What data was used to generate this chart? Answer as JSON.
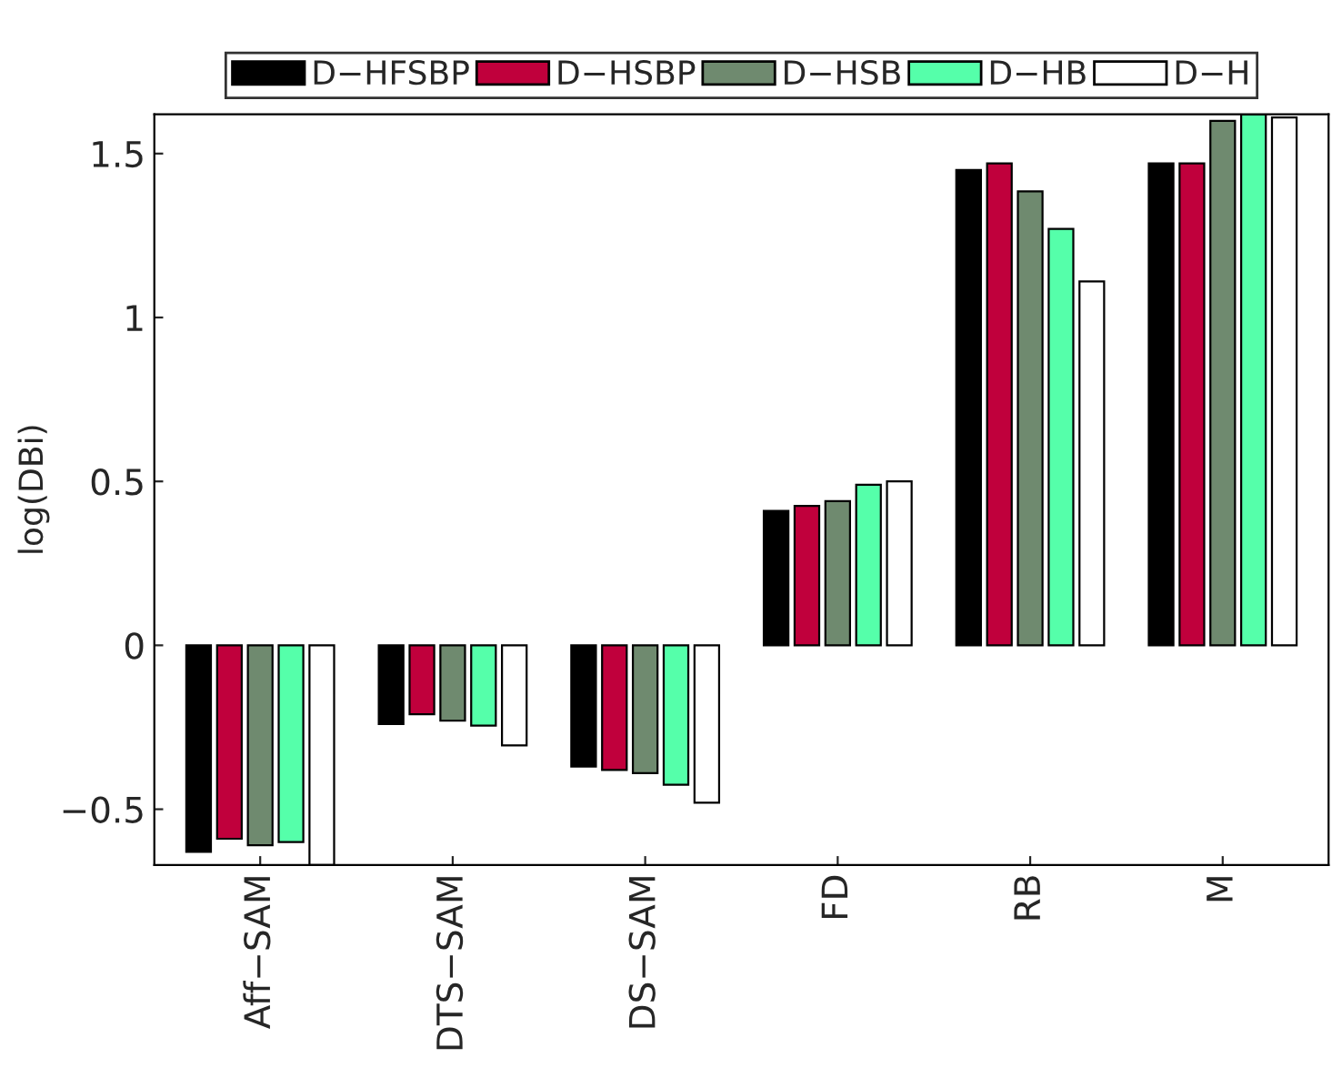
{
  "chart_data": {
    "type": "bar",
    "ylabel": "log(DBi)",
    "categories": [
      "Aff−SAM",
      "DTS−SAM",
      "DS−SAM",
      "FD",
      "RB",
      "M"
    ],
    "series": [
      {
        "name": "D−HFSBP",
        "color": "#000000",
        "values": [
          -0.63,
          -0.24,
          -0.37,
          0.41,
          1.45,
          1.47
        ]
      },
      {
        "name": "D−HSBP",
        "color": "#c0003c",
        "values": [
          -0.59,
          -0.21,
          -0.38,
          0.425,
          1.47,
          1.47
        ]
      },
      {
        "name": "D−HSB",
        "color": "#6f8a6f",
        "values": [
          -0.61,
          -0.23,
          -0.39,
          0.44,
          1.385,
          1.6
        ]
      },
      {
        "name": "D−HB",
        "color": "#55ffaa",
        "values": [
          -0.6,
          -0.245,
          -0.425,
          0.49,
          1.27,
          1.62
        ]
      },
      {
        "name": "D−H",
        "color": "#ffffff",
        "values": [
          -0.67,
          -0.305,
          -0.48,
          0.5,
          1.11,
          1.61
        ]
      }
    ],
    "ylim": [
      -0.67,
      1.62
    ],
    "yticks": [
      {
        "value": -0.5,
        "label": "−0.5"
      },
      0,
      0.5,
      1,
      1.5
    ],
    "grid": false,
    "legend": "top"
  }
}
